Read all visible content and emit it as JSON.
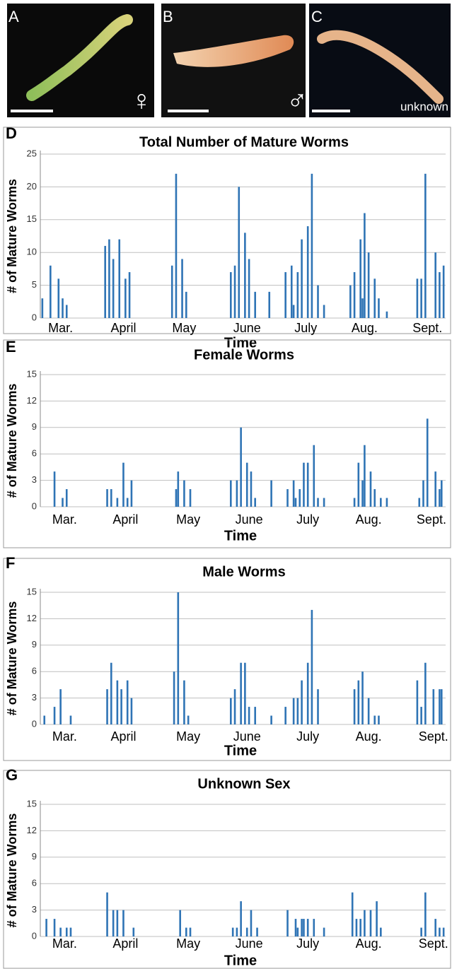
{
  "photos": [
    {
      "label": "A",
      "caption": "♀"
    },
    {
      "label": "B",
      "caption": "♂"
    },
    {
      "label": "C",
      "caption": "unknown"
    }
  ],
  "chart_data": [
    {
      "type": "bar",
      "panel": "D",
      "title": "Total Number of Mature Worms",
      "xlabel": "Time",
      "ylabel": "# of Mature Worms",
      "color": "#2f74b5",
      "grid": true,
      "xlim": [
        0,
        200
      ],
      "xticks": [
        {
          "value": 10,
          "label": "Mar."
        },
        {
          "value": 41,
          "label": "April"
        },
        {
          "value": 71,
          "label": "May"
        },
        {
          "value": 102,
          "label": "June"
        },
        {
          "value": 131,
          "label": "July"
        },
        {
          "value": 160,
          "label": "Aug."
        },
        {
          "value": 191,
          "label": "Sept."
        }
      ],
      "ylim": [
        0,
        25
      ],
      "yticks": [
        0,
        5,
        10,
        15,
        20,
        25
      ],
      "x": [
        1,
        5,
        9,
        11,
        13,
        32,
        34,
        36,
        39,
        42,
        44,
        65,
        67,
        70,
        72,
        94,
        96,
        98,
        101,
        103,
        106,
        113,
        121,
        124,
        125,
        127,
        129,
        132,
        134,
        137,
        140,
        153,
        155,
        158,
        159,
        160,
        162,
        165,
        167,
        171,
        186,
        188,
        190,
        195,
        197,
        199
      ],
      "values": [
        3,
        8,
        6,
        3,
        2,
        11,
        12,
        9,
        12,
        6,
        7,
        8,
        22,
        9,
        4,
        7,
        8,
        20,
        13,
        9,
        4,
        4,
        7,
        8,
        2,
        7,
        12,
        14,
        22,
        5,
        2,
        5,
        7,
        12,
        3,
        16,
        10,
        6,
        3,
        1,
        6,
        6,
        22,
        10,
        7,
        8
      ]
    },
    {
      "type": "bar",
      "panel": "E",
      "title": "Female Worms",
      "xlabel": "Time",
      "ylabel": "# of Mature Worms",
      "color": "#2f74b5",
      "grid": true,
      "xlim": [
        0,
        200
      ],
      "xticks": [
        {
          "value": 12,
          "label": "Mar."
        },
        {
          "value": 42,
          "label": "April"
        },
        {
          "value": 73,
          "label": "May"
        },
        {
          "value": 103,
          "label": "June"
        },
        {
          "value": 132,
          "label": "July"
        },
        {
          "value": 162,
          "label": "Aug."
        },
        {
          "value": 193,
          "label": "Sept."
        }
      ],
      "ylim": [
        0,
        15
      ],
      "yticks": [
        0,
        3,
        6,
        9,
        12,
        15
      ],
      "x": [
        7,
        11,
        13,
        33,
        35,
        38,
        41,
        43,
        45,
        67,
        68,
        71,
        74,
        94,
        97,
        99,
        102,
        104,
        106,
        114,
        122,
        125,
        126,
        128,
        130,
        132,
        135,
        137,
        140,
        155,
        157,
        159,
        160,
        163,
        165,
        168,
        171,
        187,
        189,
        191,
        195,
        197,
        198
      ],
      "values": [
        4,
        1,
        2,
        2,
        2,
        1,
        5,
        1,
        3,
        2,
        4,
        3,
        2,
        3,
        3,
        9,
        5,
        4,
        1,
        3,
        2,
        3,
        1,
        2,
        5,
        5,
        7,
        1,
        1,
        1,
        5,
        3,
        7,
        4,
        2,
        1,
        1,
        1,
        3,
        10,
        4,
        2,
        3
      ]
    },
    {
      "type": "bar",
      "panel": "F",
      "title": "Male Worms",
      "xlabel": "Time",
      "ylabel": "# of Mature Worms",
      "color": "#2f74b5",
      "grid": true,
      "xlim": [
        0,
        200
      ],
      "xticks": [
        {
          "value": 12,
          "label": "Mar."
        },
        {
          "value": 41,
          "label": "April"
        },
        {
          "value": 73,
          "label": "May"
        },
        {
          "value": 102,
          "label": "June"
        },
        {
          "value": 132,
          "label": "July"
        },
        {
          "value": 162,
          "label": "Aug."
        },
        {
          "value": 194,
          "label": "Sept."
        }
      ],
      "ylim": [
        0,
        15
      ],
      "yticks": [
        0,
        3,
        6,
        9,
        12,
        15
      ],
      "x": [
        2,
        7,
        10,
        15,
        33,
        35,
        38,
        40,
        43,
        45,
        66,
        68,
        71,
        73,
        94,
        96,
        99,
        101,
        103,
        106,
        114,
        121,
        125,
        127,
        129,
        132,
        134,
        137,
        155,
        157,
        159,
        162,
        165,
        167,
        186,
        188,
        190,
        194,
        197,
        198
      ],
      "values": [
        1,
        2,
        4,
        1,
        4,
        7,
        5,
        4,
        5,
        3,
        6,
        15,
        5,
        1,
        3,
        4,
        7,
        7,
        2,
        2,
        1,
        2,
        3,
        3,
        5,
        7,
        13,
        4,
        4,
        5,
        6,
        3,
        1,
        1,
        5,
        2,
        7,
        4,
        4,
        4
      ]
    },
    {
      "type": "bar",
      "panel": "G",
      "title": "Unknown Sex",
      "xlabel": "Time",
      "ylabel": "# of Mature Worms",
      "color": "#2f74b5",
      "grid": true,
      "xlim": [
        0,
        200
      ],
      "xticks": [
        {
          "value": 12,
          "label": "Mar."
        },
        {
          "value": 42,
          "label": "April"
        },
        {
          "value": 73,
          "label": "May"
        },
        {
          "value": 103,
          "label": "June"
        },
        {
          "value": 132,
          "label": "July"
        },
        {
          "value": 162,
          "label": "Aug."
        },
        {
          "value": 194,
          "label": "Sept."
        }
      ],
      "ylim": [
        0,
        15
      ],
      "yticks": [
        0,
        3,
        6,
        9,
        12,
        15
      ],
      "x": [
        3,
        7,
        10,
        13,
        15,
        33,
        36,
        38,
        41,
        46,
        69,
        72,
        74,
        95,
        97,
        99,
        102,
        104,
        107,
        122,
        126,
        127,
        129,
        130,
        132,
        135,
        140,
        154,
        156,
        158,
        160,
        163,
        166,
        168,
        188,
        190,
        195,
        197,
        199
      ],
      "values": [
        2,
        2,
        1,
        1,
        1,
        5,
        3,
        3,
        3,
        1,
        3,
        1,
        1,
        1,
        1,
        4,
        1,
        3,
        1,
        3,
        2,
        1,
        2,
        2,
        2,
        2,
        1,
        5,
        2,
        2,
        3,
        3,
        4,
        1,
        1,
        5,
        2,
        1,
        1
      ]
    }
  ]
}
